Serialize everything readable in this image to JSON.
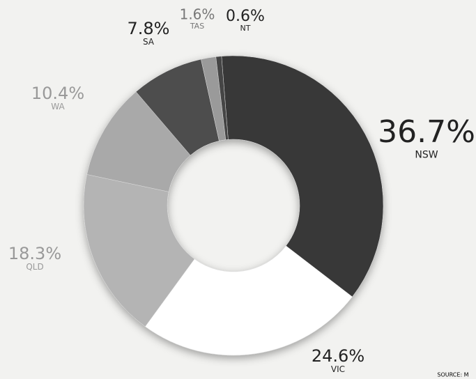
{
  "chart_data": {
    "type": "donut",
    "categories": [
      "NSW",
      "VIC",
      "QLD",
      "WA",
      "SA",
      "TAS",
      "NT"
    ],
    "values": [
      36.7,
      24.6,
      18.3,
      10.4,
      7.8,
      1.6,
      0.6
    ],
    "value_labels": [
      "36.7%",
      "24.6%",
      "18.3%",
      "10.4%",
      "7.8%",
      "1.6%",
      "0.6%"
    ],
    "colors": [
      "#383838",
      "#ffffff",
      "#b4b4b4",
      "#a9a9a9",
      "#4e4e4e",
      "#9a9a9a",
      "#444444"
    ],
    "source": "SOURCE: M"
  }
}
